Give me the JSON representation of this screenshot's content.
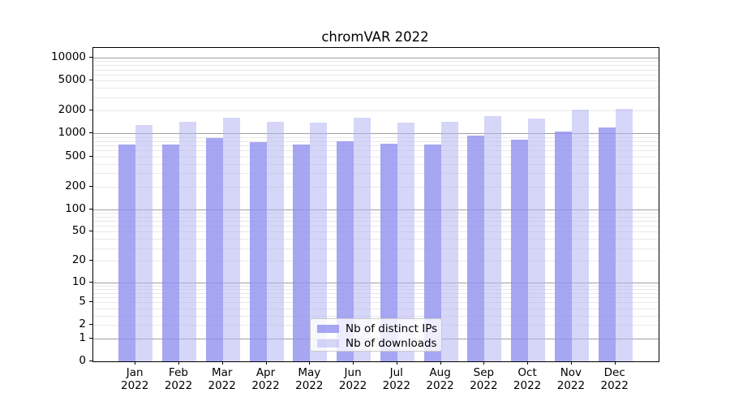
{
  "chart_data": {
    "type": "bar",
    "title": "chromVAR 2022",
    "categories": [
      "Jan",
      "Feb",
      "Mar",
      "Apr",
      "May",
      "Jun",
      "Jul",
      "Aug",
      "Sep",
      "Oct",
      "Nov",
      "Dec"
    ],
    "x_tick_year": "2022",
    "series": [
      {
        "name": "Nb of distinct IPs",
        "color": "rgba(144,144,240,0.8)",
        "values": [
          715,
          715,
          870,
          765,
          710,
          800,
          740,
          715,
          950,
          830,
          1070,
          1200
        ]
      },
      {
        "name": "Nb of downloads",
        "color": "rgba(180,180,242,0.55)",
        "values": [
          1300,
          1415,
          1615,
          1415,
          1380,
          1605,
          1400,
          1425,
          1705,
          1575,
          2050,
          2100
        ]
      }
    ],
    "yscale": "log1p",
    "y_ticks": [
      10000,
      5000,
      2000,
      1000,
      500,
      200,
      100,
      50,
      20,
      10,
      5,
      2,
      1,
      0
    ],
    "y_axis_max": 13430,
    "ylim": [
      0,
      13430
    ],
    "grid": {
      "enabled": true,
      "major_values": [
        1,
        10,
        100,
        1000,
        10000
      ],
      "major_color": "#a0a0a0",
      "minor_color": "#e9e9e9"
    },
    "legend": {
      "position": "lower center",
      "entries": [
        "Nb of distinct IPs",
        "Nb of downloads"
      ]
    }
  }
}
